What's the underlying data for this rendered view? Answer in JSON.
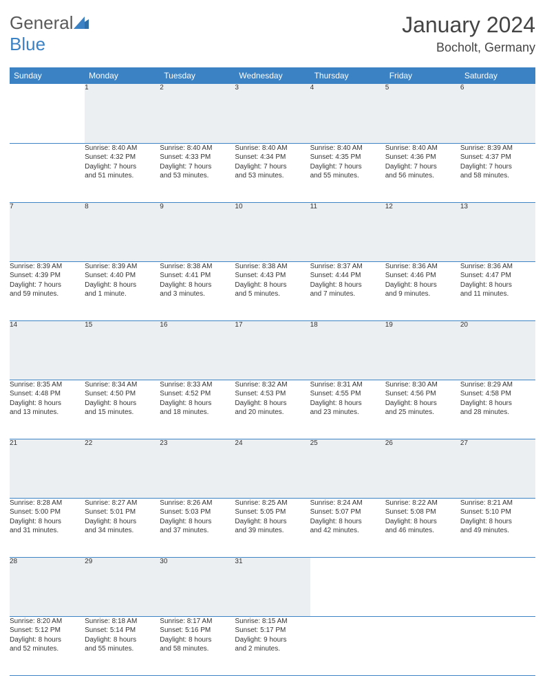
{
  "logo": {
    "part1": "General",
    "part2": "Blue"
  },
  "title": "January 2024",
  "location": "Bocholt, Germany",
  "colors": {
    "header_bg": "#3b82c4",
    "header_text": "#ffffff",
    "daynum_bg": "#eceff2",
    "cell_border": "#3b82c4",
    "text": "#333333",
    "logo_gray": "#5a5a5a",
    "logo_blue": "#3b82c4",
    "page_bg": "#ffffff"
  },
  "typography": {
    "title_fontsize": 32,
    "location_fontsize": 18,
    "weekday_fontsize": 12,
    "daynum_fontsize": 11,
    "cell_fontsize": 10
  },
  "weekdays": [
    "Sunday",
    "Monday",
    "Tuesday",
    "Wednesday",
    "Thursday",
    "Friday",
    "Saturday"
  ],
  "weeks": [
    [
      null,
      {
        "n": "1",
        "sunrise": "8:40 AM",
        "sunset": "4:32 PM",
        "day1": "Daylight: 7 hours",
        "day2": "and 51 minutes."
      },
      {
        "n": "2",
        "sunrise": "8:40 AM",
        "sunset": "4:33 PM",
        "day1": "Daylight: 7 hours",
        "day2": "and 53 minutes."
      },
      {
        "n": "3",
        "sunrise": "8:40 AM",
        "sunset": "4:34 PM",
        "day1": "Daylight: 7 hours",
        "day2": "and 53 minutes."
      },
      {
        "n": "4",
        "sunrise": "8:40 AM",
        "sunset": "4:35 PM",
        "day1": "Daylight: 7 hours",
        "day2": "and 55 minutes."
      },
      {
        "n": "5",
        "sunrise": "8:40 AM",
        "sunset": "4:36 PM",
        "day1": "Daylight: 7 hours",
        "day2": "and 56 minutes."
      },
      {
        "n": "6",
        "sunrise": "8:39 AM",
        "sunset": "4:37 PM",
        "day1": "Daylight: 7 hours",
        "day2": "and 58 minutes."
      }
    ],
    [
      {
        "n": "7",
        "sunrise": "8:39 AM",
        "sunset": "4:39 PM",
        "day1": "Daylight: 7 hours",
        "day2": "and 59 minutes."
      },
      {
        "n": "8",
        "sunrise": "8:39 AM",
        "sunset": "4:40 PM",
        "day1": "Daylight: 8 hours",
        "day2": "and 1 minute."
      },
      {
        "n": "9",
        "sunrise": "8:38 AM",
        "sunset": "4:41 PM",
        "day1": "Daylight: 8 hours",
        "day2": "and 3 minutes."
      },
      {
        "n": "10",
        "sunrise": "8:38 AM",
        "sunset": "4:43 PM",
        "day1": "Daylight: 8 hours",
        "day2": "and 5 minutes."
      },
      {
        "n": "11",
        "sunrise": "8:37 AM",
        "sunset": "4:44 PM",
        "day1": "Daylight: 8 hours",
        "day2": "and 7 minutes."
      },
      {
        "n": "12",
        "sunrise": "8:36 AM",
        "sunset": "4:46 PM",
        "day1": "Daylight: 8 hours",
        "day2": "and 9 minutes."
      },
      {
        "n": "13",
        "sunrise": "8:36 AM",
        "sunset": "4:47 PM",
        "day1": "Daylight: 8 hours",
        "day2": "and 11 minutes."
      }
    ],
    [
      {
        "n": "14",
        "sunrise": "8:35 AM",
        "sunset": "4:48 PM",
        "day1": "Daylight: 8 hours",
        "day2": "and 13 minutes."
      },
      {
        "n": "15",
        "sunrise": "8:34 AM",
        "sunset": "4:50 PM",
        "day1": "Daylight: 8 hours",
        "day2": "and 15 minutes."
      },
      {
        "n": "16",
        "sunrise": "8:33 AM",
        "sunset": "4:52 PM",
        "day1": "Daylight: 8 hours",
        "day2": "and 18 minutes."
      },
      {
        "n": "17",
        "sunrise": "8:32 AM",
        "sunset": "4:53 PM",
        "day1": "Daylight: 8 hours",
        "day2": "and 20 minutes."
      },
      {
        "n": "18",
        "sunrise": "8:31 AM",
        "sunset": "4:55 PM",
        "day1": "Daylight: 8 hours",
        "day2": "and 23 minutes."
      },
      {
        "n": "19",
        "sunrise": "8:30 AM",
        "sunset": "4:56 PM",
        "day1": "Daylight: 8 hours",
        "day2": "and 25 minutes."
      },
      {
        "n": "20",
        "sunrise": "8:29 AM",
        "sunset": "4:58 PM",
        "day1": "Daylight: 8 hours",
        "day2": "and 28 minutes."
      }
    ],
    [
      {
        "n": "21",
        "sunrise": "8:28 AM",
        "sunset": "5:00 PM",
        "day1": "Daylight: 8 hours",
        "day2": "and 31 minutes."
      },
      {
        "n": "22",
        "sunrise": "8:27 AM",
        "sunset": "5:01 PM",
        "day1": "Daylight: 8 hours",
        "day2": "and 34 minutes."
      },
      {
        "n": "23",
        "sunrise": "8:26 AM",
        "sunset": "5:03 PM",
        "day1": "Daylight: 8 hours",
        "day2": "and 37 minutes."
      },
      {
        "n": "24",
        "sunrise": "8:25 AM",
        "sunset": "5:05 PM",
        "day1": "Daylight: 8 hours",
        "day2": "and 39 minutes."
      },
      {
        "n": "25",
        "sunrise": "8:24 AM",
        "sunset": "5:07 PM",
        "day1": "Daylight: 8 hours",
        "day2": "and 42 minutes."
      },
      {
        "n": "26",
        "sunrise": "8:22 AM",
        "sunset": "5:08 PM",
        "day1": "Daylight: 8 hours",
        "day2": "and 46 minutes."
      },
      {
        "n": "27",
        "sunrise": "8:21 AM",
        "sunset": "5:10 PM",
        "day1": "Daylight: 8 hours",
        "day2": "and 49 minutes."
      }
    ],
    [
      {
        "n": "28",
        "sunrise": "8:20 AM",
        "sunset": "5:12 PM",
        "day1": "Daylight: 8 hours",
        "day2": "and 52 minutes."
      },
      {
        "n": "29",
        "sunrise": "8:18 AM",
        "sunset": "5:14 PM",
        "day1": "Daylight: 8 hours",
        "day2": "and 55 minutes."
      },
      {
        "n": "30",
        "sunrise": "8:17 AM",
        "sunset": "5:16 PM",
        "day1": "Daylight: 8 hours",
        "day2": "and 58 minutes."
      },
      {
        "n": "31",
        "sunrise": "8:15 AM",
        "sunset": "5:17 PM",
        "day1": "Daylight: 9 hours",
        "day2": "and 2 minutes."
      },
      null,
      null,
      null
    ]
  ],
  "labels": {
    "sunrise_prefix": "Sunrise: ",
    "sunset_prefix": "Sunset: "
  }
}
